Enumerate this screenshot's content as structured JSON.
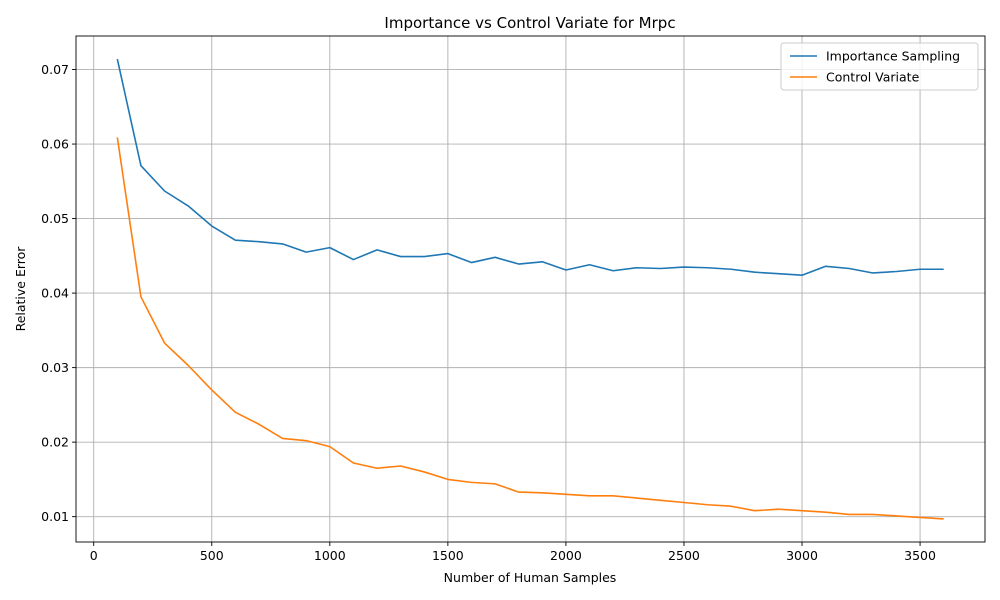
{
  "chart_data": {
    "type": "line",
    "title": "Importance vs Control Variate for Mrpc",
    "xlabel": "Number of Human Samples",
    "ylabel": "Relative Error",
    "xlim": [
      -75,
      3775
    ],
    "ylim": [
      0.0066,
      0.0745
    ],
    "xticks": [
      0,
      500,
      1000,
      1500,
      2000,
      2500,
      3000,
      3500
    ],
    "xtick_labels": [
      "0",
      "500",
      "1000",
      "1500",
      "2000",
      "2500",
      "3000",
      "3500"
    ],
    "yticks": [
      0.01,
      0.02,
      0.03,
      0.04,
      0.05,
      0.06,
      0.07
    ],
    "ytick_labels": [
      "0.01",
      "0.02",
      "0.03",
      "0.04",
      "0.05",
      "0.06",
      "0.07"
    ],
    "grid": true,
    "legend_position": "top-right",
    "x": [
      100,
      200,
      300,
      400,
      500,
      600,
      700,
      800,
      900,
      1000,
      1100,
      1200,
      1300,
      1400,
      1500,
      1600,
      1700,
      1800,
      1900,
      2000,
      2100,
      2200,
      2300,
      2400,
      2500,
      2600,
      2700,
      2800,
      2900,
      3000,
      3100,
      3200,
      3300,
      3400,
      3500,
      3600
    ],
    "series": [
      {
        "name": "Importance Sampling",
        "color": "#1f77b4",
        "values": [
          0.0714,
          0.0571,
          0.0537,
          0.0517,
          0.049,
          0.0471,
          0.0469,
          0.0466,
          0.0455,
          0.0461,
          0.0445,
          0.0458,
          0.0449,
          0.0449,
          0.0453,
          0.0441,
          0.0448,
          0.0439,
          0.0442,
          0.0431,
          0.0438,
          0.043,
          0.0434,
          0.0433,
          0.0435,
          0.0434,
          0.0432,
          0.0428,
          0.0426,
          0.0424,
          0.0436,
          0.0433,
          0.0427,
          0.0429,
          0.0432,
          0.0432
        ]
      },
      {
        "name": "Control Variate",
        "color": "#ff7f0e",
        "values": [
          0.0609,
          0.0395,
          0.0333,
          0.0303,
          0.027,
          0.024,
          0.0224,
          0.0205,
          0.0202,
          0.0194,
          0.0172,
          0.0165,
          0.0168,
          0.016,
          0.015,
          0.0146,
          0.0144,
          0.0133,
          0.0132,
          0.013,
          0.0128,
          0.0128,
          0.0125,
          0.0122,
          0.0119,
          0.0116,
          0.0114,
          0.0108,
          0.011,
          0.0108,
          0.0106,
          0.0103,
          0.0103,
          0.0101,
          0.0099,
          0.0097
        ]
      }
    ]
  }
}
